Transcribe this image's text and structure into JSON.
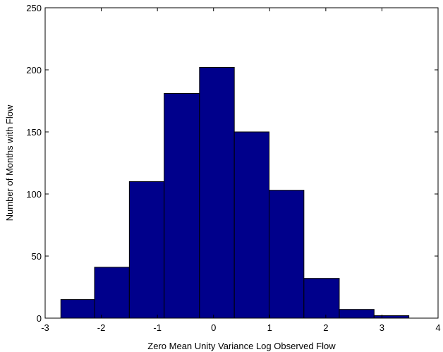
{
  "chart_data": {
    "type": "bar",
    "xlabel": "Zero Mean Unity Variance Log Observed Flow",
    "ylabel": "Number of Months with Flow",
    "xlim": [
      -3,
      4
    ],
    "ylim": [
      0,
      250
    ],
    "xticks": [
      "-3",
      "-2",
      "-1",
      "0",
      "1",
      "2",
      "3",
      "4"
    ],
    "yticks": [
      "0",
      "50",
      "100",
      "150",
      "200",
      "250"
    ],
    "bar_color": "#00008b",
    "bin_edges": [
      -2.72,
      -2.12,
      -1.5,
      -0.88,
      -0.25,
      0.37,
      0.99,
      1.61,
      2.24,
      2.86,
      3.48
    ],
    "values": [
      15,
      41,
      110,
      181,
      202,
      150,
      103,
      32,
      7,
      2
    ]
  }
}
